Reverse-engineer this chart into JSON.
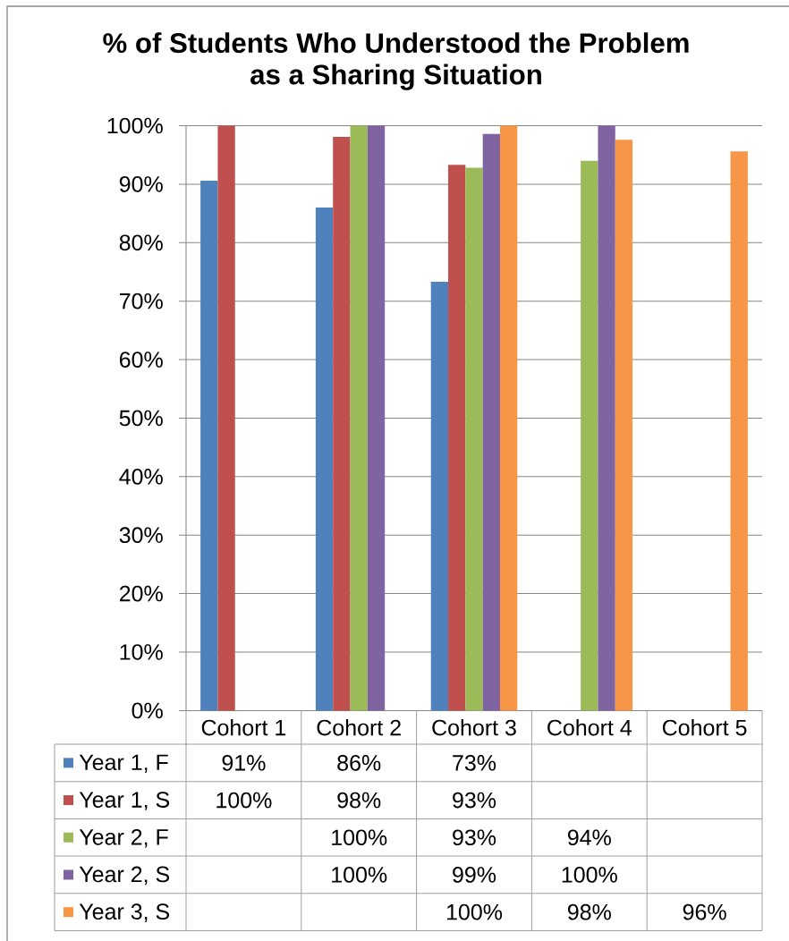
{
  "chart_data": {
    "type": "bar",
    "title": "% of Students Who Understood the Problem as a Sharing Situation",
    "categories": [
      "Cohort 1",
      "Cohort 2",
      "Cohort 3",
      "Cohort 4",
      "Cohort 5"
    ],
    "series": [
      {
        "name": "Year 1, F",
        "color": "#4f81bd",
        "values": [
          90.6,
          86.0,
          73.3,
          null,
          null
        ],
        "value_labels": [
          "91%",
          "86%",
          "73%",
          null,
          null
        ]
      },
      {
        "name": "Year 1, S",
        "color": "#c0504d",
        "values": [
          100,
          98.1,
          93.3,
          null,
          null
        ],
        "value_labels": [
          "100%",
          "98%",
          "93%",
          null,
          null
        ]
      },
      {
        "name": "Year 2, F",
        "color": "#9bbb59",
        "values": [
          null,
          100,
          92.8,
          94.0,
          null
        ],
        "value_labels": [
          null,
          "100%",
          "93%",
          "94%",
          null
        ]
      },
      {
        "name": "Year 2, S",
        "color": "#8064a2",
        "values": [
          null,
          100,
          98.6,
          100,
          null
        ],
        "value_labels": [
          null,
          "100%",
          "99%",
          "100%",
          null
        ]
      },
      {
        "name": "Year 3, S",
        "color": "#f79646",
        "values": [
          null,
          null,
          100,
          97.6,
          95.6
        ],
        "value_labels": [
          null,
          null,
          "100%",
          "98%",
          "96%"
        ]
      }
    ],
    "ylim": [
      0,
      100
    ],
    "yticks": [
      {
        "value": 0,
        "label": "0%"
      },
      {
        "value": 10,
        "label": "10%"
      },
      {
        "value": 20,
        "label": "20%"
      },
      {
        "value": 30,
        "label": "30%"
      },
      {
        "value": 40,
        "label": "40%"
      },
      {
        "value": 50,
        "label": "50%"
      },
      {
        "value": 60,
        "label": "60%"
      },
      {
        "value": 70,
        "label": "70%"
      },
      {
        "value": 80,
        "label": "80%"
      },
      {
        "value": 90,
        "label": "90%"
      },
      {
        "value": 100,
        "label": "100%"
      }
    ],
    "grid": "y",
    "legend": "bottom"
  }
}
